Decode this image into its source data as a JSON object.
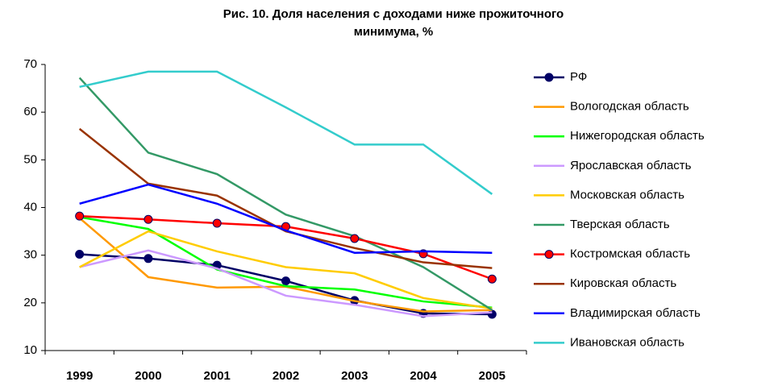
{
  "chart_data": {
    "type": "line",
    "title": [
      "Рис. 10. Доля населения с доходами ниже прожиточного",
      "минимума, %"
    ],
    "categories": [
      "1999",
      "2000",
      "2001",
      "2002",
      "2003",
      "2004",
      "2005"
    ],
    "ylim": [
      10,
      70
    ],
    "yticks": [
      10,
      20,
      30,
      40,
      50,
      60,
      70
    ],
    "grid": false,
    "legend": "right",
    "series": [
      {
        "name": "РФ",
        "color": "#000066",
        "marker": true,
        "values": [
          30.2,
          29.3,
          27.9,
          24.6,
          20.5,
          17.8,
          17.6
        ]
      },
      {
        "name": "Вологодская область",
        "color": "#ff9900",
        "marker": false,
        "values": [
          37.8,
          25.4,
          23.2,
          23.4,
          20.4,
          18.2,
          18.5
        ]
      },
      {
        "name": "Нижегородская область",
        "color": "#00ff00",
        "marker": false,
        "values": [
          38,
          35.5,
          27,
          23.5,
          22.8,
          20.3,
          19
        ]
      },
      {
        "name": "Ярославская область",
        "color": "#cc99ff",
        "marker": false,
        "values": [
          27.5,
          31,
          27.2,
          21.5,
          19.6,
          17.2,
          18
        ]
      },
      {
        "name": "Московская область",
        "color": "#ffcc00",
        "marker": false,
        "values": [
          27.5,
          35,
          30.8,
          27.5,
          26.2,
          21,
          18.8
        ]
      },
      {
        "name": "Тверская область",
        "color": "#339966",
        "marker": false,
        "values": [
          67.2,
          51.5,
          47,
          38.5,
          34,
          27.5,
          18.5
        ]
      },
      {
        "name": "Костромская область",
        "color": "#ff0000",
        "marker": true,
        "values": [
          38.2,
          37.5,
          36.7,
          36,
          33.5,
          30.3,
          25
        ]
      },
      {
        "name": "Кировская область",
        "color": "#993300",
        "marker": false,
        "values": [
          56.5,
          45,
          42.5,
          35,
          31.5,
          28.5,
          27.3
        ]
      },
      {
        "name": "Владимирская область",
        "color": "#0000ff",
        "marker": false,
        "values": [
          40.8,
          44.8,
          40.8,
          35.2,
          30.5,
          30.8,
          30.5
        ]
      },
      {
        "name": "Ивановская область",
        "color": "#33cccc",
        "marker": false,
        "values": [
          65.3,
          68.5,
          68.5,
          61,
          53.2,
          53.2,
          42.8
        ]
      }
    ]
  }
}
